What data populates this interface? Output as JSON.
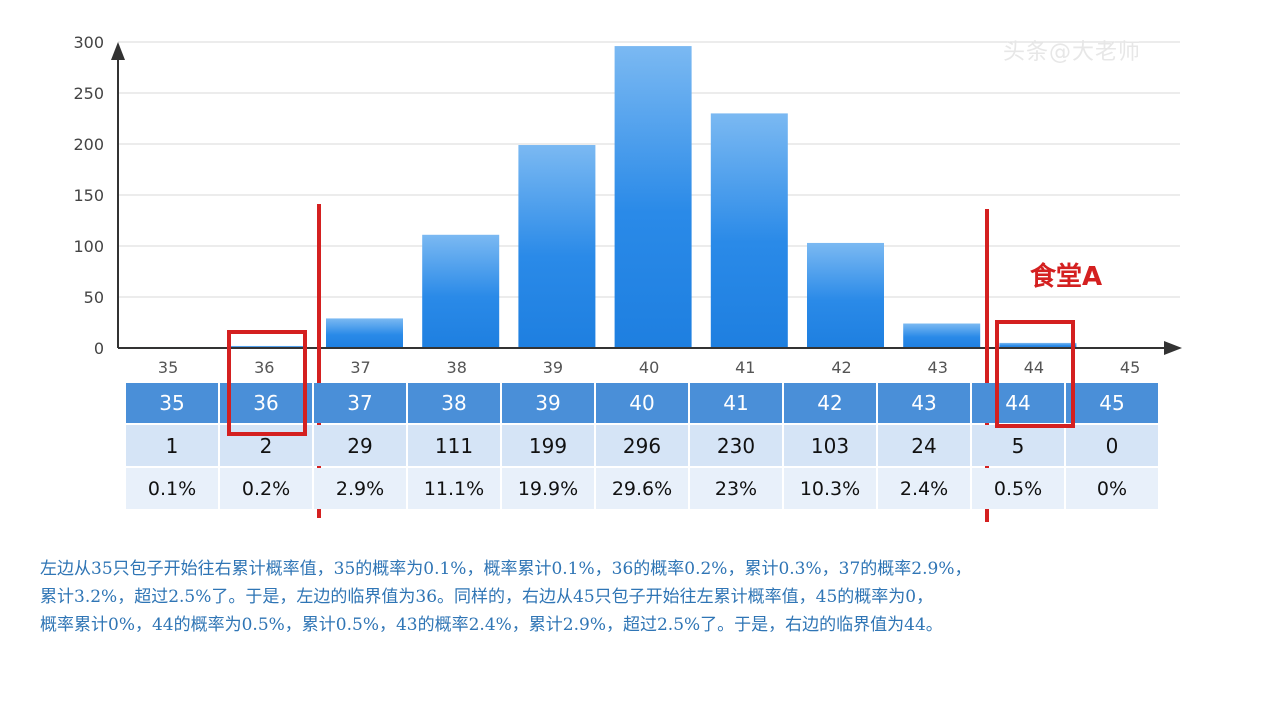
{
  "chart_data": {
    "type": "bar",
    "categories": [
      "35",
      "36",
      "37",
      "38",
      "39",
      "40",
      "41",
      "42",
      "43",
      "44",
      "45"
    ],
    "values": [
      1,
      2,
      29,
      111,
      199,
      296,
      230,
      103,
      24,
      5,
      0
    ],
    "ylim": [
      0,
      300
    ],
    "yticks": [
      "0",
      "50",
      "100",
      "150",
      "200",
      "250",
      "300"
    ],
    "grid": true,
    "bar_color": "#2a8ae8"
  },
  "table": {
    "x_row": [
      "35",
      "36",
      "37",
      "38",
      "39",
      "40",
      "41",
      "42",
      "43",
      "44",
      "45"
    ],
    "count_row": [
      "1",
      "2",
      "29",
      "111",
      "199",
      "296",
      "230",
      "103",
      "24",
      "5",
      "0"
    ],
    "prob_row": [
      "0.1%",
      "0.2%",
      "2.9%",
      "11.1%",
      "19.9%",
      "29.6%",
      "23%",
      "10.3%",
      "2.4%",
      "0.5%",
      "0%"
    ]
  },
  "annotation_label": "食堂A",
  "watermark": "头条@大老师",
  "explanation": "左边从35只包子开始往右累计概率值，35的概率为0.1%，概率累计0.1%，36的概率0.2%，累计0.3%，37的概率2.9%，\n累计3.2%，超过2.5%了。于是，左边的临界值为36。同样的，右边从45只包子开始往左累计概率值，45的概率为0，\n概率累计0%，44的概率为0.5%，累计0.5%，43的概率2.4%，累计2.9%，超过2.5%了。于是，右边的临界值为44。",
  "colors": {
    "highlight_red": "#d42020",
    "axis": "#333333",
    "grid": "#d9d9d9",
    "explanation_text": "#2f75b5"
  }
}
